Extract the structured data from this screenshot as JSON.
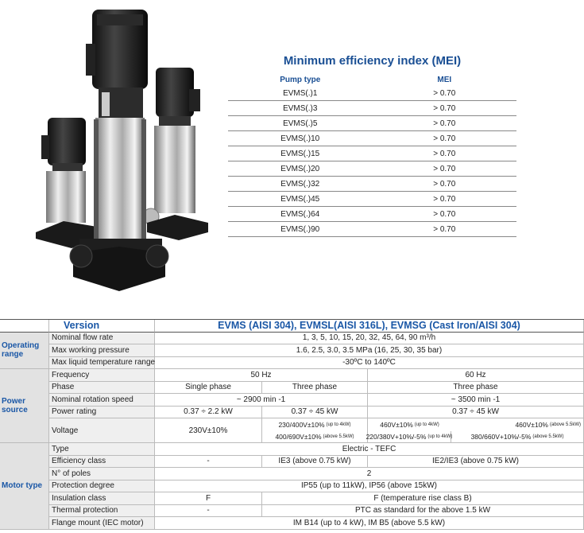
{
  "mei": {
    "title": "Minimum efficiency index (MEI)",
    "headers": [
      "Pump type",
      "MEI"
    ],
    "rows": [
      [
        "EVMS(.)1",
        "> 0.70"
      ],
      [
        "EVMS(.)3",
        "> 0.70"
      ],
      [
        "EVMS(.)5",
        "> 0.70"
      ],
      [
        "EVMS(.)10",
        "> 0.70"
      ],
      [
        "EVMS(.)15",
        "> 0.70"
      ],
      [
        "EVMS(.)20",
        "> 0.70"
      ],
      [
        "EVMS(.)32",
        "> 0.70"
      ],
      [
        "EVMS(.)45",
        "> 0.70"
      ],
      [
        "EVMS(.)64",
        "> 0.70"
      ],
      [
        "EVMS(.)90",
        "> 0.70"
      ]
    ]
  },
  "spec": {
    "version_label": "Version",
    "title": "EVMS (AISI 304), EVMSL(AISI 316L), EVMSG (Cast Iron/AISI 304)",
    "groups": [
      {
        "label": "Operating range",
        "rows": [
          {
            "name": "Nominal flow rate",
            "cells": [
              "1, 3, 5, 10, 15, 20, 32, 45, 64, 90 m³/h"
            ]
          },
          {
            "name": "Max working pressure",
            "cells": [
              "1.6, 2.5, 3.0, 3.5 MPa (16, 25, 30, 35 bar)"
            ]
          },
          {
            "name": "Max liquid temperature range",
            "cells": [
              "-30ºC to 140ºC"
            ]
          }
        ]
      },
      {
        "label": "Power source",
        "rows": [
          {
            "name": "Frequency",
            "cells": [
              "50 Hz",
              "60 Hz"
            ]
          },
          {
            "name": "Phase",
            "cells": [
              "Single phase",
              "Three phase",
              "Three phase"
            ]
          },
          {
            "name": "Nominal rotation speed",
            "cells": [
              "~ 2900 min -1",
              "~ 3500 min -1"
            ]
          },
          {
            "name": "Power rating",
            "cells": [
              "0.37 ÷ 2.2 kW",
              "0.37 ÷ 45 kW",
              "0.37 ÷ 45 kW"
            ]
          },
          {
            "name": "Voltage",
            "cells": [
              {
                "text": "230V±10%"
              },
              {
                "text": "230/400V±10%",
                "note": "(up to 4kW)"
              },
              {
                "text": "400/690V±10%",
                "note": "(above 5.5kW)"
              },
              {
                "text": "460V±10%",
                "note": "(up to 4kW)"
              },
              {
                "text": "460V±10%",
                "note": "(above 5.5kW)"
              },
              {
                "text": "220/380V+10%/-5%",
                "note": "(up to 4kW)"
              },
              {
                "text": "380/660V+10%/-5%",
                "note": "(above 5.5kW)"
              }
            ]
          }
        ]
      },
      {
        "label": "Motor type",
        "rows": [
          {
            "name": "Type",
            "cells": [
              "Electric - TEFC"
            ]
          },
          {
            "name": "Efficiency class",
            "cells": [
              "-",
              "IE3 (above 0.75 kW)",
              "IE2/IE3 (above 0.75 kW)"
            ]
          },
          {
            "name": "N° of poles",
            "cells": [
              "2"
            ]
          },
          {
            "name": "Protection degree",
            "cells": [
              "IP55 (up to 11kW), IP56 (above 15kW)"
            ]
          },
          {
            "name": "Insulation class",
            "cells": [
              "F",
              "F (temperature rise class B)"
            ]
          },
          {
            "name": "Thermal protection",
            "cells": [
              "-",
              "PTC as standard for the above 1.5 kW"
            ]
          },
          {
            "name": "Flange mount (IEC motor)",
            "cells": [
              "IM B14 (up to 4 kW), IM B5 (above 5.5 kW)"
            ]
          }
        ]
      }
    ]
  }
}
